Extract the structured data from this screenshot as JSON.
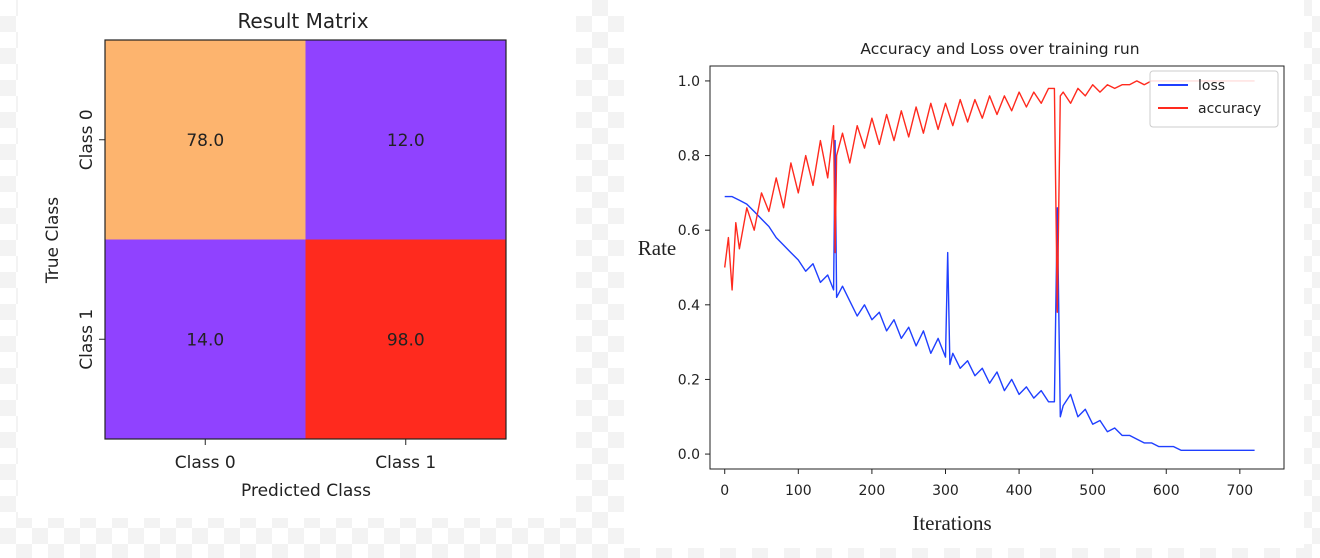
{
  "chart_data": [
    {
      "type": "heatmap",
      "title": "Result Matrix",
      "xlabel": "Predicted Class",
      "ylabel": "True Class",
      "x_categories": [
        "Class 0",
        "Class 1"
      ],
      "y_categories": [
        "Class 0",
        "Class 1"
      ],
      "values": [
        [
          78.0,
          12.0
        ],
        [
          14.0,
          98.0
        ]
      ],
      "value_labels": [
        [
          "78.0",
          "12.0"
        ],
        [
          "14.0",
          "98.0"
        ]
      ],
      "colors": [
        [
          "#fdb46e",
          "#9042ff"
        ],
        [
          "#9042ff",
          "#ff2a1e"
        ]
      ]
    },
    {
      "type": "line",
      "title": "Accuracy and Loss over training run",
      "xlabel": "Iterations",
      "ylabel": "Rate",
      "xlim": [
        -20,
        760
      ],
      "ylim": [
        -0.04,
        1.04
      ],
      "xticks": [
        0,
        100,
        200,
        300,
        400,
        500,
        600,
        700
      ],
      "xtick_labels": [
        "0",
        "100",
        "200",
        "300",
        "400",
        "500",
        "600",
        "700"
      ],
      "yticks": [
        0.0,
        0.2,
        0.4,
        0.6,
        0.8,
        1.0
      ],
      "ytick_labels": [
        "0.0",
        "0.2",
        "0.4",
        "0.6",
        "0.8",
        "1.0"
      ],
      "legend_position": "top-right",
      "grid": false,
      "series": [
        {
          "name": "loss",
          "color": "#1f3fff",
          "x": [
            0,
            10,
            20,
            30,
            40,
            50,
            60,
            70,
            80,
            90,
            100,
            110,
            120,
            130,
            140,
            148,
            150,
            152,
            160,
            170,
            180,
            190,
            200,
            210,
            220,
            230,
            240,
            250,
            260,
            270,
            280,
            290,
            300,
            303,
            306,
            310,
            320,
            330,
            340,
            350,
            360,
            370,
            380,
            390,
            400,
            410,
            420,
            430,
            440,
            448,
            452,
            456,
            460,
            470,
            480,
            490,
            500,
            510,
            520,
            530,
            540,
            550,
            560,
            570,
            580,
            590,
            600,
            610,
            620,
            630,
            640,
            650,
            660,
            670,
            680,
            690,
            700,
            710,
            720
          ],
          "y": [
            0.69,
            0.69,
            0.68,
            0.67,
            0.65,
            0.63,
            0.61,
            0.58,
            0.56,
            0.54,
            0.52,
            0.49,
            0.51,
            0.46,
            0.48,
            0.44,
            0.84,
            0.42,
            0.45,
            0.41,
            0.37,
            0.4,
            0.36,
            0.38,
            0.33,
            0.36,
            0.31,
            0.34,
            0.29,
            0.33,
            0.27,
            0.31,
            0.26,
            0.54,
            0.24,
            0.27,
            0.23,
            0.25,
            0.21,
            0.23,
            0.19,
            0.22,
            0.17,
            0.2,
            0.16,
            0.18,
            0.15,
            0.17,
            0.14,
            0.14,
            0.66,
            0.1,
            0.13,
            0.16,
            0.1,
            0.12,
            0.08,
            0.09,
            0.06,
            0.07,
            0.05,
            0.05,
            0.04,
            0.03,
            0.03,
            0.02,
            0.02,
            0.02,
            0.01,
            0.01,
            0.01,
            0.01,
            0.01,
            0.01,
            0.01,
            0.01,
            0.01,
            0.01,
            0.01
          ]
        },
        {
          "name": "accuracy",
          "color": "#ff2a1e",
          "x": [
            0,
            5,
            10,
            15,
            20,
            30,
            40,
            50,
            60,
            70,
            80,
            90,
            100,
            110,
            120,
            130,
            140,
            148,
            150,
            152,
            160,
            170,
            180,
            190,
            200,
            210,
            220,
            230,
            240,
            250,
            260,
            270,
            280,
            290,
            300,
            310,
            320,
            330,
            340,
            350,
            360,
            370,
            380,
            390,
            400,
            410,
            420,
            430,
            440,
            448,
            452,
            456,
            460,
            470,
            480,
            490,
            500,
            510,
            520,
            530,
            540,
            550,
            560,
            570,
            580,
            590,
            600,
            610,
            620,
            630,
            640,
            650,
            660,
            670,
            680,
            690,
            700,
            710,
            720
          ],
          "y": [
            0.5,
            0.58,
            0.44,
            0.62,
            0.55,
            0.66,
            0.6,
            0.7,
            0.65,
            0.74,
            0.66,
            0.78,
            0.7,
            0.8,
            0.72,
            0.84,
            0.74,
            0.88,
            0.54,
            0.8,
            0.86,
            0.78,
            0.88,
            0.82,
            0.9,
            0.83,
            0.91,
            0.84,
            0.92,
            0.85,
            0.93,
            0.86,
            0.94,
            0.87,
            0.94,
            0.88,
            0.95,
            0.89,
            0.95,
            0.9,
            0.96,
            0.91,
            0.96,
            0.92,
            0.97,
            0.93,
            0.97,
            0.94,
            0.98,
            0.98,
            0.38,
            0.96,
            0.97,
            0.94,
            0.98,
            0.96,
            0.99,
            0.97,
            0.99,
            0.98,
            0.99,
            0.99,
            1.0,
            0.99,
            1.0,
            1.0,
            1.0,
            1.0,
            1.0,
            1.0,
            1.0,
            1.0,
            1.0,
            1.0,
            1.0,
            1.0,
            1.0,
            1.0,
            1.0
          ]
        }
      ]
    }
  ]
}
